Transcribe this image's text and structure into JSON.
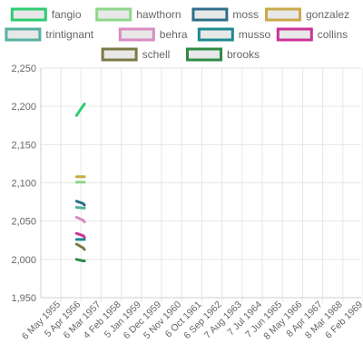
{
  "chart_data": {
    "type": "line",
    "title": "",
    "xlabel": "",
    "ylabel": "",
    "ylim": [
      1950,
      2250
    ],
    "y_ticks": [
      "1,950",
      "2,000",
      "2,050",
      "2,100",
      "2,150",
      "2,200",
      "2,250"
    ],
    "x_ticks": [
      "6 May 1955",
      "5 Apr 1956",
      "6 Mar 1957",
      "4 Feb 1958",
      "5 Jan 1959",
      "6 Dec 1959",
      "5 Nov 1960",
      "6 Oct 1961",
      "6 Sep 1962",
      "7 Aug 1963",
      "7 Jul 1964",
      "7 Jun 1965",
      "8 May 1966",
      "8 Apr 1967",
      "8 Mar 1968",
      "6 Feb 1969"
    ],
    "x_range": [
      "1955-05-06",
      "1969-02-06"
    ],
    "legend_position": "top",
    "series": [
      {
        "name": "fangio",
        "color": "#2ecc71",
        "x": [
          "1956-01-22",
          "1956-05-13",
          "1956-06-03"
        ],
        "y": [
          2188,
          2201,
          2203
        ]
      },
      {
        "name": "hawthorn",
        "color": "#8ed68a",
        "x": [
          "1956-01-22",
          "1956-05-13",
          "1956-06-03"
        ],
        "y": [
          2101,
          2101,
          2101
        ]
      },
      {
        "name": "moss",
        "color": "#2f6f8a",
        "x": [
          "1956-01-22",
          "1956-05-13",
          "1956-06-03"
        ],
        "y": [
          2076,
          2073,
          2071
        ]
      },
      {
        "name": "gonzalez",
        "color": "#c9a94a",
        "x": [
          "1956-01-22",
          "1956-05-13",
          "1956-06-03"
        ],
        "y": [
          2108,
          2108,
          2108
        ]
      },
      {
        "name": "trintignant",
        "color": "#56b0a0",
        "x": [
          "1956-01-22",
          "1956-05-13",
          "1956-06-03"
        ],
        "y": [
          2068,
          2067,
          2067
        ]
      },
      {
        "name": "behra",
        "color": "#d98cc0",
        "x": [
          "1956-01-22",
          "1956-05-13",
          "1956-06-03"
        ],
        "y": [
          2055,
          2051,
          2049
        ]
      },
      {
        "name": "musso",
        "color": "#1f8a8f",
        "x": [
          "1956-01-22",
          "1956-05-13",
          "1956-06-03"
        ],
        "y": [
          2026,
          2026,
          2026
        ]
      },
      {
        "name": "collins",
        "color": "#cc3399",
        "x": [
          "1956-01-22",
          "1956-05-13",
          "1956-06-03"
        ],
        "y": [
          2034,
          2031,
          2029
        ]
      },
      {
        "name": "schell",
        "color": "#7a7a45",
        "x": [
          "1956-01-22",
          "1956-05-13",
          "1956-06-03"
        ],
        "y": [
          2020,
          2015,
          2013
        ]
      },
      {
        "name": "brooks",
        "color": "#2e8b45",
        "x": [
          "1956-01-22",
          "1956-05-13",
          "1956-06-03"
        ],
        "y": [
          2000,
          1998,
          1998
        ]
      }
    ]
  }
}
